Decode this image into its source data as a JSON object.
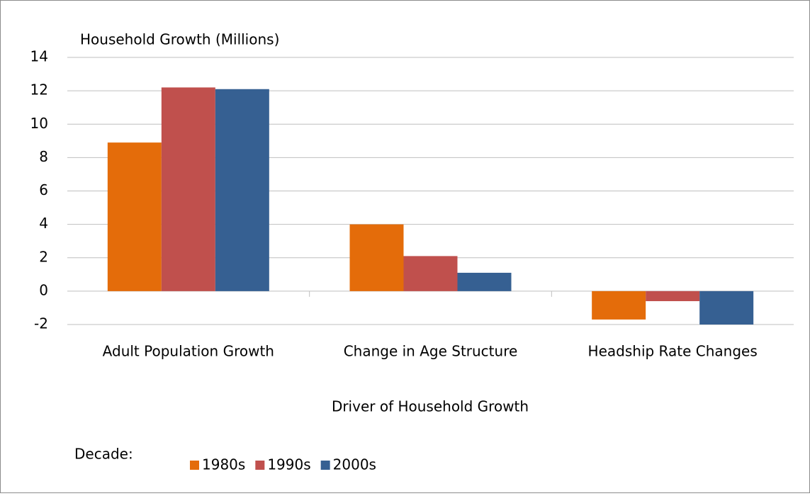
{
  "chart_data": {
    "type": "bar",
    "y_label": "Household Growth (Millions)",
    "x_label": "Driver of Household Growth",
    "legend_title": "Decade:",
    "categories": [
      "Adult Population Growth",
      "Change in Age Structure",
      "Headship Rate Changes"
    ],
    "series": [
      {
        "name": "1980s",
        "color": "#e46c0a",
        "values": [
          8.9,
          4.0,
          -1.7
        ]
      },
      {
        "name": "1990s",
        "color": "#c0504d",
        "values": [
          12.2,
          2.1,
          -0.6
        ]
      },
      {
        "name": "2000s",
        "color": "#366092",
        "values": [
          12.1,
          1.1,
          -2.0
        ]
      }
    ],
    "ylim": [
      -2,
      14
    ],
    "yticks": [
      -2,
      0,
      2,
      4,
      6,
      8,
      10,
      12,
      14
    ],
    "grid": true
  }
}
